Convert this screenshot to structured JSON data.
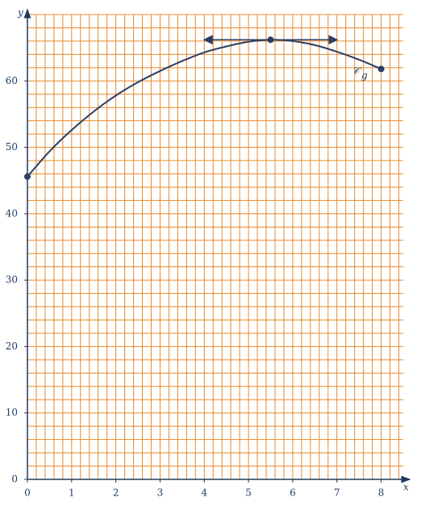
{
  "chart_data": {
    "type": "line",
    "x_label": "x",
    "y_label": "y",
    "xlim": [
      0,
      8.5
    ],
    "ylim": [
      0,
      70
    ],
    "xticks": [
      0,
      1,
      2,
      3,
      4,
      5,
      6,
      7,
      8
    ],
    "yticks": [
      0,
      10,
      20,
      30,
      40,
      50,
      60
    ],
    "grid": true,
    "grid_color": "#e8892b",
    "color": "#2c3e63",
    "x": [
      0,
      0.5,
      1,
      1.5,
      2,
      2.5,
      3,
      3.5,
      4,
      4.5,
      5,
      5.5,
      6,
      6.5,
      7,
      7.5,
      8
    ],
    "values": [
      45.6,
      49.4,
      52.6,
      55.4,
      57.8,
      59.8,
      61.5,
      63.0,
      64.3,
      65.2,
      65.9,
      66.2,
      66.0,
      65.4,
      64.4,
      63.2,
      61.8
    ],
    "points": {
      "x": [
        0,
        5.5,
        8
      ],
      "y": [
        45.6,
        66.2,
        61.8
      ]
    },
    "tangent": {
      "x": [
        4,
        7
      ],
      "y": 66.2
    },
    "curve_label": "𝒞",
    "curve_label_sub": "g"
  }
}
